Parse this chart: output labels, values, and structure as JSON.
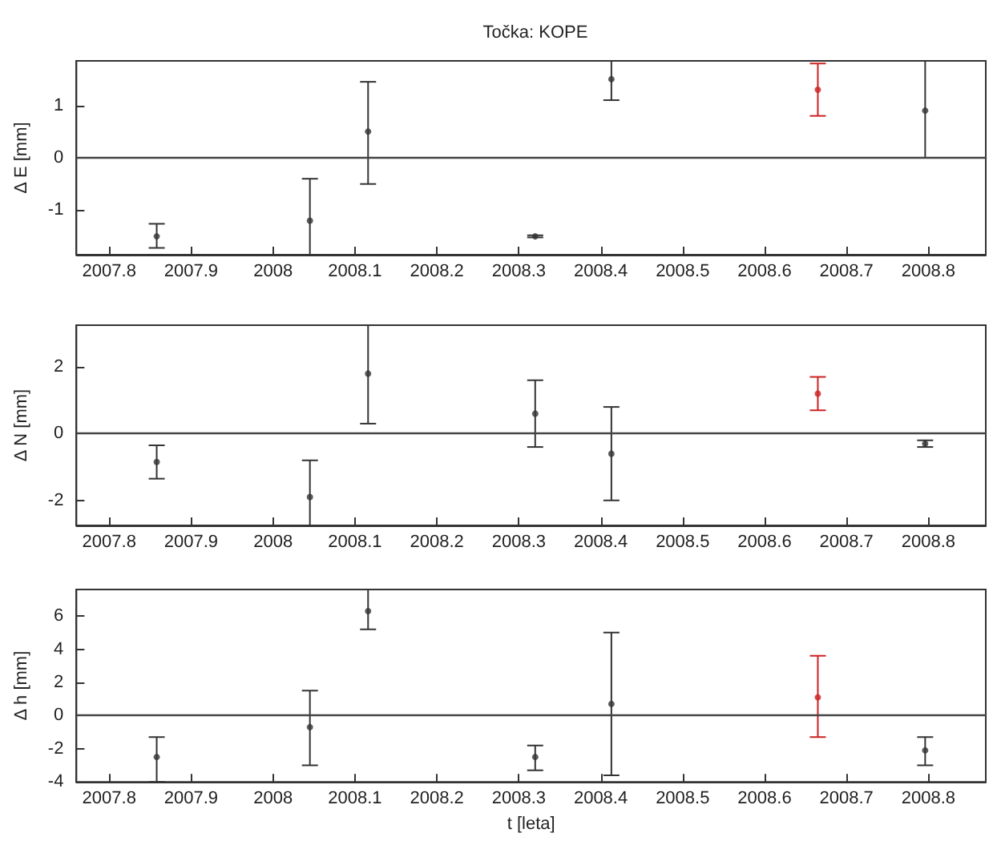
{
  "chart_data": [
    {
      "type": "scatter",
      "title": "Točka: KOPE",
      "ylabel": "Δ E [mm]",
      "x": [
        2007.858,
        2008.045,
        2008.116,
        2008.32,
        2008.413,
        2008.665,
        2008.796
      ],
      "values": [
        -1.5,
        -1.2,
        0.5,
        -1.5,
        1.5,
        1.3,
        0.9
      ],
      "errors": [
        [
          -1.72,
          -1.26
        ],
        [
          -1.85,
          -0.4
        ],
        [
          -0.5,
          1.45
        ],
        [
          -1.52,
          -1.48
        ],
        [
          1.1,
          1.85
        ],
        [
          0.8,
          1.8
        ],
        [
          0,
          1.85
        ]
      ],
      "colors": [
        "#333333",
        "#333333",
        "#333333",
        "#333333",
        "#333333",
        "#cc2222",
        "#333333"
      ],
      "xlim": [
        2007.76,
        2008.87
      ],
      "xticks": [
        2007.8,
        2007.9,
        2008,
        2008.1,
        2008.2,
        2008.3,
        2008.4,
        2008.5,
        2008.6,
        2008.7,
        2008.8
      ],
      "ylim": [
        -1.85,
        1.85
      ],
      "yticks": [
        -1,
        0,
        1
      ],
      "ref_lines": [
        {
          "axis": "y",
          "value": 0,
          "color": "#444444"
        }
      ],
      "grid": false,
      "marker": "circle"
    },
    {
      "type": "scatter",
      "ylabel": "Δ N [mm]",
      "x": [
        2007.858,
        2008.045,
        2008.116,
        2008.32,
        2008.413,
        2008.665,
        2008.796
      ],
      "values": [
        -0.85,
        -1.9,
        1.8,
        0.6,
        -0.6,
        1.2,
        -0.3
      ],
      "errors": [
        [
          -1.35,
          -0.35
        ],
        [
          -2.75,
          -0.8
        ],
        [
          0.3,
          3.25
        ],
        [
          -0.4,
          1.6
        ],
        [
          -2.0,
          0.8
        ],
        [
          0.7,
          1.7
        ],
        [
          -0.4,
          -0.2
        ]
      ],
      "colors": [
        "#333333",
        "#333333",
        "#333333",
        "#333333",
        "#333333",
        "#cc2222",
        "#333333"
      ],
      "xlim": [
        2007.76,
        2008.87
      ],
      "xticks": [
        2007.8,
        2007.9,
        2008,
        2008.1,
        2008.2,
        2008.3,
        2008.4,
        2008.5,
        2008.6,
        2008.7,
        2008.8
      ],
      "ylim": [
        -2.75,
        3.25
      ],
      "yticks": [
        -2,
        0,
        2
      ],
      "ref_lines": [
        {
          "axis": "y",
          "value": 0,
          "color": "#444444"
        }
      ],
      "grid": false,
      "marker": "circle"
    },
    {
      "type": "scatter",
      "xlabel": "t [leta]",
      "ylabel": "Δ h [mm]",
      "x": [
        2007.858,
        2008.045,
        2008.116,
        2008.32,
        2008.413,
        2008.665,
        2008.796
      ],
      "values": [
        -2.5,
        -0.7,
        6.3,
        -2.5,
        0.7,
        1.1,
        -2.1
      ],
      "errors": [
        [
          -4,
          -1.3
        ],
        [
          -3.0,
          1.5
        ],
        [
          5.2,
          7.6
        ],
        [
          -3.3,
          -1.8
        ],
        [
          -3.6,
          5.0
        ],
        [
          -1.3,
          3.6
        ],
        [
          -3.0,
          -1.3
        ]
      ],
      "colors": [
        "#333333",
        "#333333",
        "#333333",
        "#333333",
        "#333333",
        "#cc2222",
        "#333333"
      ],
      "xlim": [
        2007.76,
        2008.87
      ],
      "xticks": [
        2007.8,
        2007.9,
        2008,
        2008.1,
        2008.2,
        2008.3,
        2008.4,
        2008.5,
        2008.6,
        2008.7,
        2008.8
      ],
      "ylim": [
        -4,
        7.6
      ],
      "yticks": [
        -4,
        -2,
        0,
        2,
        4,
        6
      ],
      "ref_lines": [
        {
          "axis": "y",
          "value": 0,
          "color": "#444444"
        }
      ],
      "grid": false,
      "marker": "circle"
    }
  ]
}
